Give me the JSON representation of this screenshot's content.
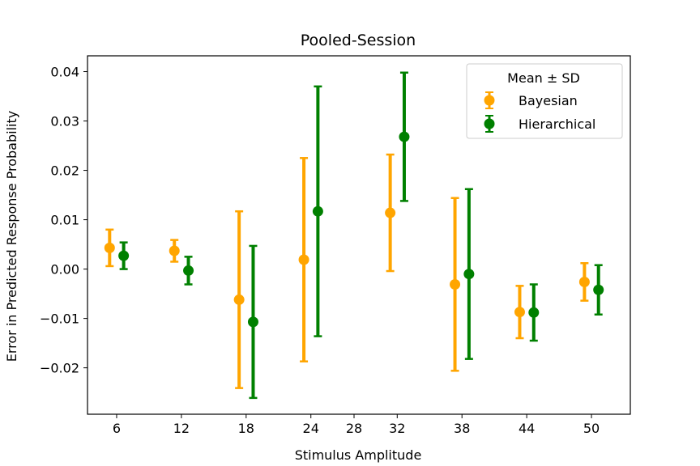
{
  "chart_data": {
    "type": "scatter",
    "title": "Pooled-Session",
    "xlabel": "Stimulus Amplitude",
    "ylabel": "Error in Predicted Response Probability",
    "xlim": [
      3.3,
      53.6
    ],
    "ylim": [
      -0.0294,
      0.0432
    ],
    "x_ticks": [
      6,
      12,
      18,
      24,
      28,
      32,
      38,
      44,
      50
    ],
    "y_ticks": [
      -0.02,
      -0.01,
      0.0,
      0.01,
      0.02,
      0.03,
      0.04
    ],
    "y_tick_labels": [
      "−0.02",
      "−0.01",
      "0.00",
      "0.01",
      "0.02",
      "0.03",
      "0.04"
    ],
    "grid": false,
    "legend": {
      "title": "Mean ± SD",
      "position": "top-right"
    },
    "series": [
      {
        "name": "Bayesian",
        "color": "#ffa500",
        "x": [
          6,
          12,
          18,
          24,
          32,
          38,
          44,
          50
        ],
        "mean": [
          0.0043,
          0.0037,
          -0.0062,
          0.0019,
          0.0114,
          -0.0031,
          -0.0087,
          -0.0026
        ],
        "sd": [
          0.0037,
          0.0022,
          0.0179,
          0.0206,
          0.0118,
          0.0175,
          0.0053,
          0.0038
        ]
      },
      {
        "name": "Hierarchical",
        "color": "#008000",
        "x": [
          6,
          12,
          18,
          24,
          32,
          38,
          44,
          50
        ],
        "mean": [
          0.0027,
          -0.0003,
          -0.0107,
          0.0117,
          0.0268,
          -0.001,
          -0.0088,
          -0.0042
        ],
        "sd": [
          0.0027,
          0.0028,
          0.0154,
          0.0253,
          0.013,
          0.0172,
          0.0057,
          0.005
        ]
      }
    ]
  }
}
